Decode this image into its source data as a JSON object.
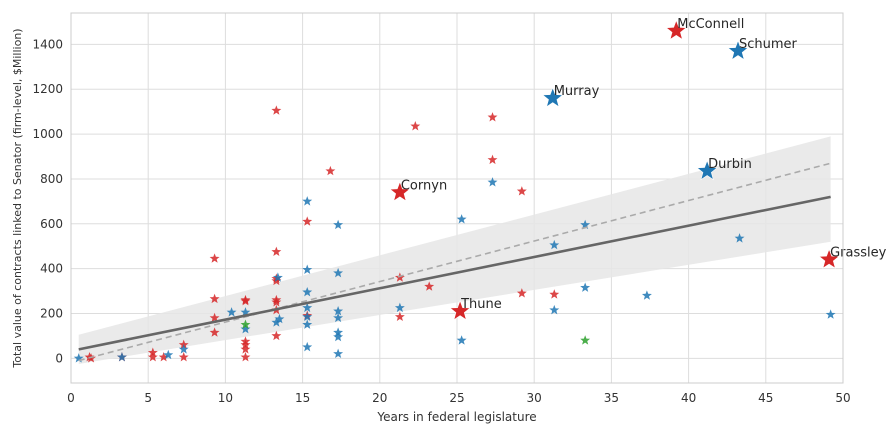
{
  "chart_data": {
    "type": "scatter",
    "xlabel": "Years in federal legislature",
    "ylabel": "Total value of contracts linked to Senator (firm-level, $Million)",
    "xlim": [
      0,
      50
    ],
    "ylim": [
      -110,
      1540
    ],
    "x_ticks": [
      0,
      5,
      10,
      15,
      20,
      25,
      30,
      35,
      40,
      45,
      50
    ],
    "y_ticks": [
      0,
      200,
      400,
      600,
      800,
      1000,
      1200,
      1400
    ],
    "grid": true,
    "colors": {
      "red": "#d62728",
      "blue": "#1f77b4",
      "green": "#2ca02c",
      "fit": "#666666",
      "dashed": "#aaaaaa",
      "band": "#e6e6e6"
    },
    "fit_line": {
      "x": [
        0.5,
        49.2
      ],
      "y": [
        40,
        720
      ]
    },
    "dashed_line": {
      "x": [
        0.5,
        49.2
      ],
      "y": [
        -10,
        870
      ]
    },
    "confidence_band": {
      "x": [
        0.5,
        49.2
      ],
      "upper": [
        105,
        990
      ],
      "lower": [
        -25,
        520
      ]
    },
    "series": [
      {
        "color": "red",
        "points": [
          [
            1.2,
            5
          ],
          [
            1.3,
            0
          ],
          [
            3.3,
            5
          ],
          [
            5.3,
            25
          ],
          [
            5.3,
            5
          ],
          [
            6.0,
            5
          ],
          [
            7.3,
            60
          ],
          [
            7.3,
            5
          ],
          [
            9.3,
            445
          ],
          [
            9.3,
            265
          ],
          [
            9.3,
            180
          ],
          [
            9.3,
            115
          ],
          [
            11.3,
            260
          ],
          [
            11.3,
            255
          ],
          [
            11.3,
            75
          ],
          [
            11.3,
            60
          ],
          [
            11.3,
            40
          ],
          [
            11.3,
            5
          ],
          [
            13.3,
            1105
          ],
          [
            13.3,
            475
          ],
          [
            13.3,
            355
          ],
          [
            13.3,
            345
          ],
          [
            13.3,
            260
          ],
          [
            13.3,
            250
          ],
          [
            13.3,
            215
          ],
          [
            13.3,
            100
          ],
          [
            15.3,
            610
          ],
          [
            15.3,
            190
          ],
          [
            16.8,
            835
          ],
          [
            21.3,
            360
          ],
          [
            21.3,
            185
          ],
          [
            22.3,
            1035
          ],
          [
            23.2,
            320
          ],
          [
            27.3,
            1075
          ],
          [
            27.3,
            885
          ],
          [
            29.2,
            290
          ],
          [
            29.2,
            745
          ],
          [
            31.3,
            285
          ]
        ]
      },
      {
        "color": "blue",
        "points": [
          [
            0.5,
            0
          ],
          [
            3.3,
            5
          ],
          [
            6.3,
            15
          ],
          [
            7.3,
            40
          ],
          [
            10.4,
            205
          ],
          [
            11.3,
            205
          ],
          [
            11.3,
            130
          ],
          [
            13.3,
            160
          ],
          [
            13.4,
            360
          ],
          [
            13.5,
            175
          ],
          [
            15.3,
            700
          ],
          [
            15.3,
            395
          ],
          [
            15.3,
            295
          ],
          [
            15.3,
            225
          ],
          [
            15.3,
            185
          ],
          [
            15.3,
            150
          ],
          [
            15.3,
            50
          ],
          [
            17.3,
            595
          ],
          [
            17.3,
            380
          ],
          [
            17.3,
            210
          ],
          [
            17.3,
            180
          ],
          [
            17.3,
            115
          ],
          [
            17.3,
            95
          ],
          [
            17.3,
            20
          ],
          [
            21.3,
            225
          ],
          [
            25.3,
            620
          ],
          [
            25.3,
            80
          ],
          [
            27.3,
            785
          ],
          [
            31.3,
            505
          ],
          [
            31.3,
            215
          ],
          [
            33.3,
            595
          ],
          [
            33.3,
            315
          ],
          [
            37.3,
            280
          ],
          [
            43.3,
            535
          ],
          [
            49.2,
            195
          ]
        ]
      },
      {
        "color": "green",
        "points": [
          [
            11.3,
            150
          ],
          [
            33.3,
            80
          ]
        ]
      }
    ],
    "highlighted": [
      {
        "name": "McConnell",
        "x": 39.2,
        "y": 1460,
        "color": "red"
      },
      {
        "name": "Schumer",
        "x": 43.2,
        "y": 1370,
        "color": "blue"
      },
      {
        "name": "Murray",
        "x": 31.2,
        "y": 1160,
        "color": "blue"
      },
      {
        "name": "Durbin",
        "x": 41.2,
        "y": 835,
        "color": "blue"
      },
      {
        "name": "Cornyn",
        "x": 21.3,
        "y": 740,
        "color": "red"
      },
      {
        "name": "Grassley",
        "x": 49.1,
        "y": 440,
        "color": "red"
      },
      {
        "name": "Thune",
        "x": 25.2,
        "y": 210,
        "color": "red"
      }
    ]
  }
}
